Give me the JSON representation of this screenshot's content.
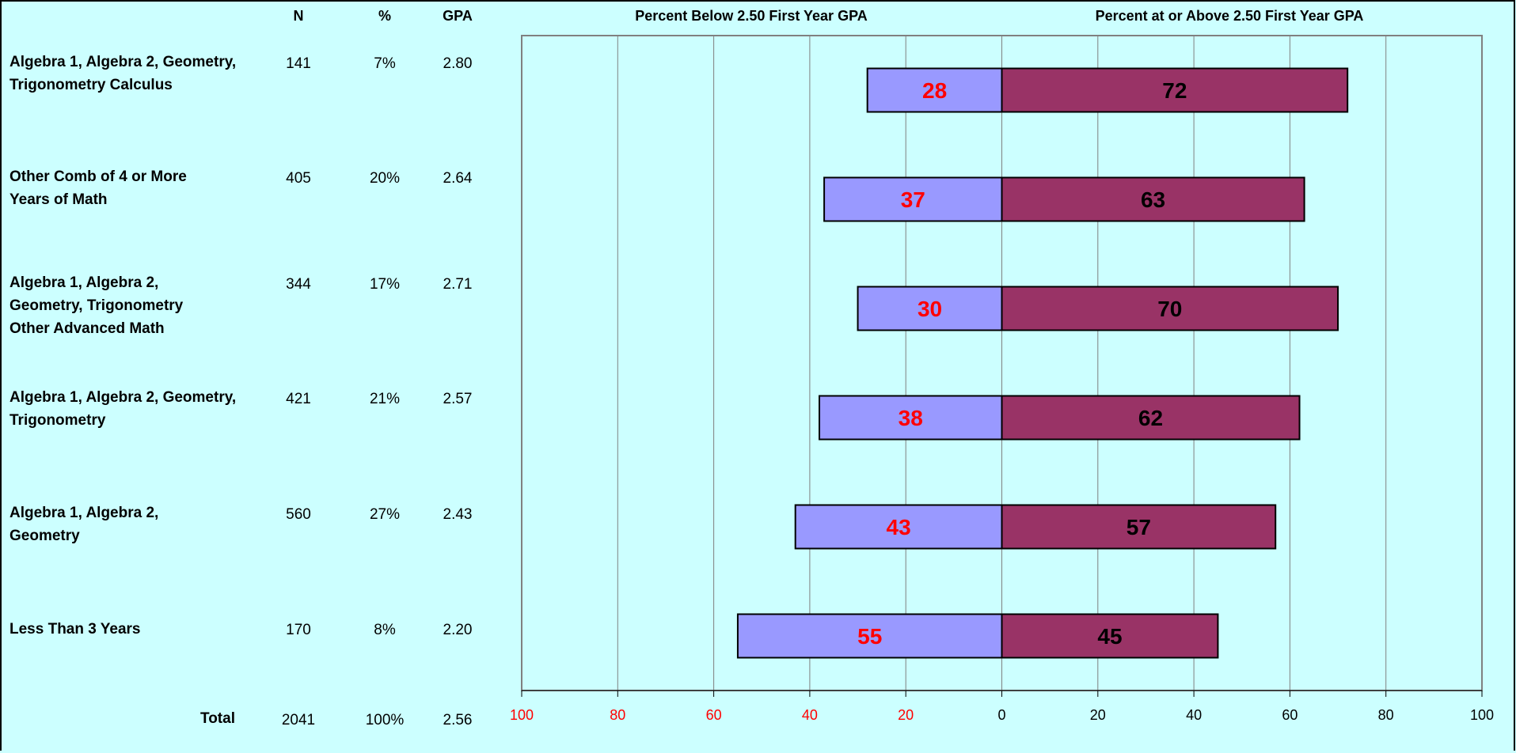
{
  "headers": {
    "n": "N",
    "pct": "%",
    "gpa": "GPA",
    "below": "Percent Below 2.50 First Year GPA",
    "above": "Percent at or Above 2.50 First Year GPA"
  },
  "rows": [
    {
      "label": "Algebra 1, Algebra 2, Geometry, Trigonometry Calculus",
      "n": "141",
      "pct": "7%",
      "gpa": "2.80"
    },
    {
      "label": "Other Comb of 4 or More Years of Math",
      "n": "405",
      "pct": "20%",
      "gpa": "2.64"
    },
    {
      "label": "Algebra 1, Algebra 2, Geometry, Trigonometry Other Advanced Math",
      "n": "344",
      "pct": "17%",
      "gpa": "2.71"
    },
    {
      "label": "Algebra 1, Algebra 2, Geometry, Trigonometry",
      "n": "421",
      "pct": "21%",
      "gpa": "2.57"
    },
    {
      "label": "Algebra 1, Algebra 2, Geometry",
      "n": "560",
      "pct": "27%",
      "gpa": "2.43"
    },
    {
      "label": "Less Than 3 Years",
      "n": "170",
      "pct": "8%",
      "gpa": "2.20"
    }
  ],
  "total": {
    "label": "Total",
    "n": "2041",
    "pct": "100%",
    "gpa": "2.56"
  },
  "chart_data": {
    "type": "bar",
    "orientation": "horizontal-diverging",
    "categories": [
      "Algebra 1, Algebra 2, Geometry, Trigonometry Calculus",
      "Other Comb of 4 or More Years of Math",
      "Algebra 1, Algebra 2, Geometry, Trigonometry Other Advanced Math",
      "Algebra 1, Algebra 2, Geometry, Trigonometry",
      "Algebra 1, Algebra 2, Geometry",
      "Less Than 3 Years"
    ],
    "series": [
      {
        "name": "Percent Below 2.50 First Year GPA",
        "values": [
          28,
          37,
          30,
          38,
          43,
          55
        ],
        "color": "#9999ff",
        "label_color": "#ff0000",
        "direction": "left"
      },
      {
        "name": "Percent at or Above 2.50 First Year GPA",
        "values": [
          72,
          63,
          70,
          62,
          57,
          45
        ],
        "color": "#993366",
        "label_color": "#000000",
        "direction": "right"
      }
    ],
    "xlim": [
      -100,
      100
    ],
    "x_ticks": [
      -100,
      -80,
      -60,
      -40,
      -20,
      0,
      20,
      40,
      60,
      80,
      100
    ],
    "x_tick_labels": [
      "100",
      "80",
      "60",
      "40",
      "20",
      "0",
      "20",
      "40",
      "60",
      "80",
      "100"
    ],
    "negative_tick_color": "#ff0000",
    "grid": true,
    "background": "#ccffff"
  }
}
